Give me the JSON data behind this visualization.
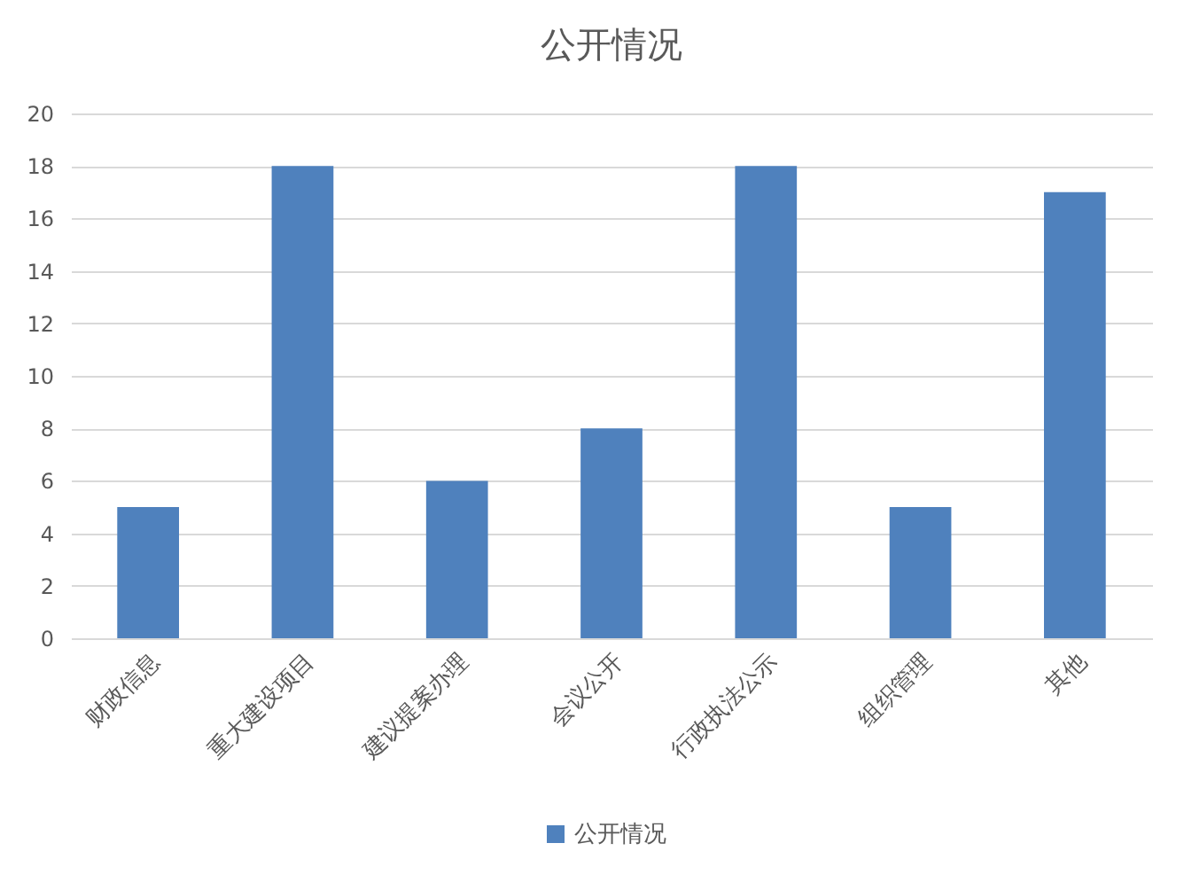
{
  "chart_data": {
    "type": "bar",
    "title": "公开情况",
    "categories": [
      "财政信息",
      "重大建设项目",
      "建议提案办理",
      "会议公开",
      "行政执法公示",
      "组织管理",
      "其他"
    ],
    "series": [
      {
        "name": "公开情况",
        "color": "#4f81bd",
        "values": [
          5,
          18,
          6,
          8,
          18,
          5,
          17
        ]
      }
    ],
    "ylim": [
      0,
      20
    ],
    "yticks": [
      0,
      2,
      4,
      6,
      8,
      10,
      12,
      14,
      16,
      18,
      20
    ],
    "grid": "y",
    "legend": "bottom"
  }
}
